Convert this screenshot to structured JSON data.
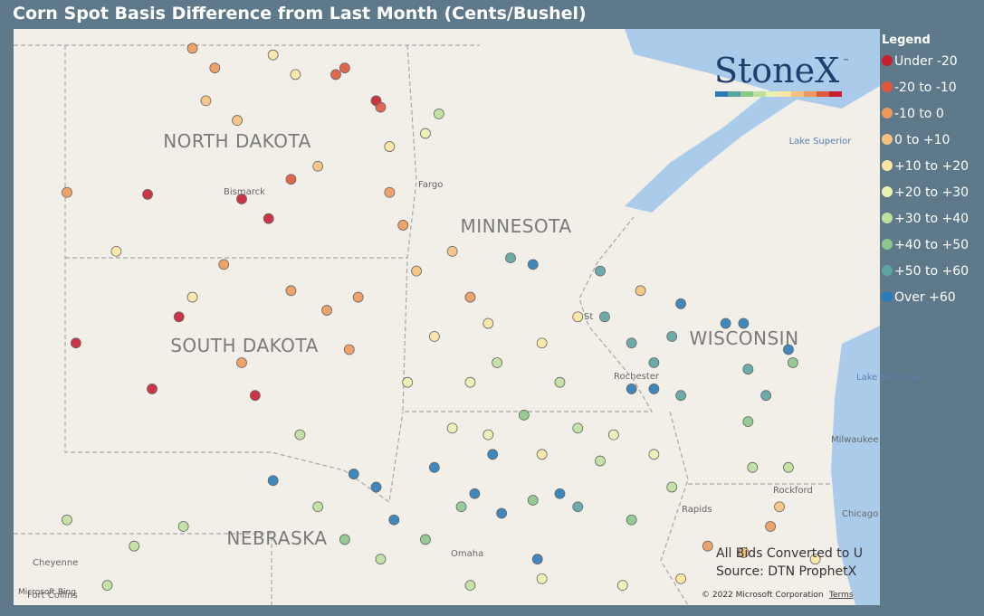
{
  "header": {
    "title": "Corn Spot Basis Difference from Last Month (Cents/Bushel)"
  },
  "legend": {
    "title": "Legend",
    "items": [
      {
        "label": "Under -20",
        "color": "#c81e32"
      },
      {
        "label": "-20 to -10",
        "color": "#e0573b"
      },
      {
        "label": "-10 to 0",
        "color": "#ee995c"
      },
      {
        "label": "0 to +10",
        "color": "#f7c27f"
      },
      {
        "label": "+10 to +20",
        "color": "#fbe6a3"
      },
      {
        "label": "+20 to +30",
        "color": "#e9f2b2"
      },
      {
        "label": "+30 to +40",
        "color": "#bfe09d"
      },
      {
        "label": "+40 to +50",
        "color": "#8cc68b"
      },
      {
        "label": "+50 to +60",
        "color": "#5ea3a4"
      },
      {
        "label": "Over +60",
        "color": "#2c7bb6"
      }
    ]
  },
  "logo": {
    "name": "StoneX",
    "mark": "™"
  },
  "map_labels": {
    "states": [
      "NORTH DAKOTA",
      "SOUTH DAKOTA",
      "MINNESOTA",
      "WISCONSIN",
      "NEBRASKA"
    ],
    "water": [
      "Lake Superior",
      "Lake Michigan"
    ],
    "cities": [
      "Bismarck",
      "Fargo",
      "Rochester",
      "Milwaukee",
      "Cheyenne",
      "Fort Collins",
      "Omaha",
      "Chicago",
      "Rockford",
      "Rapids",
      "St"
    ]
  },
  "notes": [
    "All Bids Converted to U",
    "Source: DTN ProphetX"
  ],
  "attribution": {
    "bing": "Microsoft Bing",
    "copyright": "© 2022 Microsoft Corporation",
    "terms": "Terms"
  },
  "points": [
    [
      -102.9,
      46.77,
      0
    ],
    [
      -100.8,
      46.7,
      0
    ],
    [
      -100.2,
      46.4,
      0
    ],
    [
      -102.2,
      44.9,
      0
    ],
    [
      -104.5,
      44.5,
      0
    ],
    [
      -102.8,
      43.8,
      0
    ],
    [
      -100.5,
      43.7,
      0
    ],
    [
      -97.8,
      48.2,
      0
    ],
    [
      -104.7,
      46.8,
      2
    ],
    [
      -101.9,
      49.0,
      2
    ],
    [
      -101.4,
      48.7,
      2
    ],
    [
      -98.5,
      48.7,
      1
    ],
    [
      -98.7,
      48.6,
      1
    ],
    [
      -97.7,
      48.1,
      1
    ],
    [
      -99.7,
      47.0,
      1
    ],
    [
      -101.2,
      45.7,
      2
    ],
    [
      -99.7,
      45.3,
      2
    ],
    [
      -98.9,
      45.0,
      2
    ],
    [
      -98.4,
      44.4,
      2
    ],
    [
      -100.8,
      44.2,
      2
    ],
    [
      -98.2,
      45.2,
      2
    ],
    [
      -97.5,
      46.8,
      2
    ],
    [
      -97.2,
      46.3,
      2
    ],
    [
      -100.9,
      47.9,
      3
    ],
    [
      -99.1,
      47.2,
      3
    ],
    [
      -101.6,
      48.2,
      3
    ],
    [
      -100.1,
      48.9,
      4
    ],
    [
      -99.6,
      48.6,
      4
    ],
    [
      -97.5,
      47.5,
      4
    ],
    [
      -101.9,
      45.2,
      4
    ],
    [
      -103.6,
      45.9,
      4
    ],
    [
      -96.7,
      47.7,
      5
    ],
    [
      -96.4,
      48.0,
      6
    ],
    [
      -96.9,
      45.6,
      3
    ],
    [
      -96.1,
      45.9,
      3
    ],
    [
      -95.7,
      45.2,
      2
    ],
    [
      -95.3,
      44.8,
      4
    ],
    [
      -96.5,
      44.6,
      4
    ],
    [
      -97.1,
      43.9,
      5
    ],
    [
      -95.7,
      43.9,
      5
    ],
    [
      -95.1,
      44.2,
      6
    ],
    [
      -94.1,
      44.5,
      4
    ],
    [
      -93.3,
      44.9,
      4
    ],
    [
      -93.7,
      43.9,
      6
    ],
    [
      -94.5,
      43.4,
      7
    ],
    [
      -93.3,
      43.2,
      6
    ],
    [
      -92.5,
      43.1,
      5
    ],
    [
      -92.1,
      43.8,
      9
    ],
    [
      -91.6,
      44.2,
      8
    ],
    [
      -91.2,
      44.6,
      8
    ],
    [
      -90.0,
      44.8,
      9
    ],
    [
      -89.6,
      44.8,
      9
    ],
    [
      -91.0,
      45.1,
      9
    ],
    [
      -92.7,
      44.9,
      8
    ],
    [
      -92.1,
      44.5,
      8
    ],
    [
      -91.9,
      45.3,
      3
    ],
    [
      -92.8,
      45.6,
      8
    ],
    [
      -94.3,
      45.7,
      9
    ],
    [
      -94.8,
      45.8,
      8
    ],
    [
      -89.5,
      44.1,
      8
    ],
    [
      -88.6,
      44.4,
      9
    ],
    [
      -88.5,
      44.2,
      7
    ],
    [
      -89.1,
      43.7,
      8
    ],
    [
      -89.5,
      43.3,
      7
    ],
    [
      -91.0,
      43.7,
      8
    ],
    [
      -91.6,
      43.8,
      9
    ],
    [
      -98.3,
      42.5,
      9
    ],
    [
      -97.8,
      42.3,
      9
    ],
    [
      -97.4,
      41.8,
      9
    ],
    [
      -96.5,
      42.6,
      9
    ],
    [
      -95.6,
      42.2,
      9
    ],
    [
      -95.2,
      42.8,
      9
    ],
    [
      -95.0,
      41.9,
      9
    ],
    [
      -94.2,
      41.2,
      9
    ],
    [
      -93.7,
      42.2,
      9
    ],
    [
      -93.3,
      42.0,
      8
    ],
    [
      -94.3,
      42.1,
      7
    ],
    [
      -95.9,
      42.0,
      7
    ],
    [
      -96.7,
      41.5,
      7
    ],
    [
      -97.7,
      41.2,
      6
    ],
    [
      -98.5,
      41.5,
      7
    ],
    [
      -99.1,
      42.0,
      6
    ],
    [
      -100.1,
      42.4,
      9
    ],
    [
      -99.5,
      43.1,
      6
    ],
    [
      -102.1,
      41.7,
      6
    ],
    [
      -103.2,
      41.4,
      6
    ],
    [
      -104.7,
      41.8,
      6
    ],
    [
      -103.8,
      40.8,
      6
    ],
    [
      -92.1,
      41.8,
      7
    ],
    [
      -91.2,
      42.3,
      6
    ],
    [
      -90.4,
      41.4,
      2
    ],
    [
      -89.6,
      41.3,
      3
    ],
    [
      -89.0,
      41.7,
      2
    ],
    [
      -88.8,
      42.0,
      3
    ],
    [
      -88.0,
      41.2,
      4
    ],
    [
      -89.4,
      42.6,
      6
    ],
    [
      -88.6,
      42.6,
      6
    ],
    [
      -91.0,
      40.9,
      4
    ],
    [
      -92.3,
      40.8,
      5
    ],
    [
      -94.1,
      40.9,
      5
    ],
    [
      -95.7,
      40.8,
      6
    ],
    [
      -95.3,
      43.1,
      5
    ],
    [
      -94.1,
      42.8,
      4
    ],
    [
      -92.8,
      42.7,
      6
    ],
    [
      -91.6,
      42.8,
      5
    ],
    [
      -96.1,
      43.2,
      5
    ]
  ]
}
